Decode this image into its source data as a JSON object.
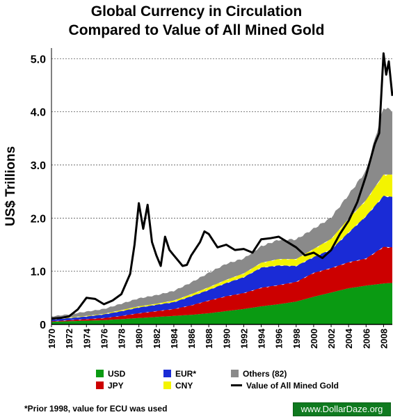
{
  "chart_data": {
    "type": "area",
    "title": "Global Currency in Circulation",
    "subtitle": "Compared to Value of All Mined Gold",
    "ylabel": "US$ Trillions",
    "xlabel": "",
    "xlim": [
      1970,
      2009
    ],
    "ylim": [
      0,
      5.2
    ],
    "x_ticks": [
      "1970",
      "1972",
      "1974",
      "1976",
      "1978",
      "1980",
      "1982",
      "1984",
      "1986",
      "1988",
      "1990",
      "1992",
      "1994",
      "1996",
      "1998",
      "2000",
      "2002",
      "2004",
      "2006",
      "2008"
    ],
    "y_ticks": [
      "0",
      "1.0",
      "2.0",
      "3.0",
      "4.0",
      "5.0"
    ],
    "grid": "horizontal dashed",
    "stacked": true,
    "x": [
      1970,
      1972,
      1974,
      1976,
      1978,
      1980,
      1982,
      1984,
      1986,
      1988,
      1990,
      1992,
      1994,
      1996,
      1998,
      2000,
      2002,
      2004,
      2006,
      2008,
      2009
    ],
    "series": [
      {
        "name": "USD",
        "color": "#0a9a12",
        "values": [
          0.05,
          0.06,
          0.07,
          0.08,
          0.1,
          0.12,
          0.14,
          0.16,
          0.18,
          0.21,
          0.25,
          0.29,
          0.34,
          0.38,
          0.43,
          0.52,
          0.6,
          0.68,
          0.73,
          0.77,
          0.78
        ]
      },
      {
        "name": "JPY",
        "color": "#cc0000",
        "values": [
          0.01,
          0.02,
          0.03,
          0.04,
          0.06,
          0.09,
          0.11,
          0.13,
          0.18,
          0.24,
          0.28,
          0.3,
          0.35,
          0.36,
          0.37,
          0.45,
          0.46,
          0.49,
          0.51,
          0.69,
          0.67
        ]
      },
      {
        "name": "EUR*",
        "color": "#1a2bd6",
        "values": [
          0.03,
          0.04,
          0.05,
          0.07,
          0.09,
          0.11,
          0.12,
          0.13,
          0.17,
          0.2,
          0.25,
          0.3,
          0.38,
          0.37,
          0.3,
          0.3,
          0.35,
          0.56,
          0.8,
          0.96,
          0.95
        ]
      },
      {
        "name": "CNY",
        "color": "#f4f400",
        "values": [
          0.01,
          0.01,
          0.01,
          0.01,
          0.02,
          0.02,
          0.02,
          0.03,
          0.04,
          0.05,
          0.06,
          0.07,
          0.09,
          0.12,
          0.13,
          0.15,
          0.2,
          0.26,
          0.3,
          0.4,
          0.42
        ]
      },
      {
        "name": "Others (82)",
        "color": "#8a8a8a",
        "values": [
          0.05,
          0.06,
          0.08,
          0.09,
          0.12,
          0.15,
          0.16,
          0.18,
          0.22,
          0.27,
          0.3,
          0.28,
          0.31,
          0.36,
          0.37,
          0.38,
          0.4,
          0.45,
          0.55,
          1.26,
          1.2
        ]
      }
    ],
    "gold": {
      "name": "Value of All Mined Gold",
      "x": [
        1970,
        1971,
        1972,
        1973,
        1974,
        1975,
        1976,
        1977,
        1978,
        1979,
        1979.5,
        1980,
        1980.5,
        1981,
        1981.5,
        1982,
        1982.5,
        1983,
        1983.5,
        1984,
        1985,
        1985.5,
        1986,
        1987,
        1987.5,
        1988,
        1989,
        1990,
        1991,
        1992,
        1993,
        1994,
        1995,
        1996,
        1997,
        1998,
        1999,
        2000,
        2001,
        2002,
        2003,
        2004,
        2005,
        2006,
        2007,
        2007.5,
        2008,
        2008.3,
        2008.6,
        2009
      ],
      "values": [
        0.11,
        0.12,
        0.15,
        0.28,
        0.5,
        0.48,
        0.38,
        0.45,
        0.57,
        0.95,
        1.5,
        2.28,
        1.8,
        2.25,
        1.55,
        1.3,
        1.1,
        1.65,
        1.4,
        1.3,
        1.1,
        1.12,
        1.3,
        1.55,
        1.75,
        1.7,
        1.45,
        1.5,
        1.4,
        1.42,
        1.35,
        1.6,
        1.62,
        1.65,
        1.55,
        1.45,
        1.3,
        1.35,
        1.25,
        1.4,
        1.7,
        1.95,
        2.3,
        2.8,
        3.4,
        3.6,
        5.1,
        4.7,
        4.95,
        4.3
      ],
      "color": "#000000"
    },
    "legend": "bottom",
    "annotations": [
      "*Prior 1998, value for ECU was used"
    ],
    "credit": "www.DollarDaze.org"
  },
  "legend_items": [
    {
      "label": "USD",
      "color": "#0a9a12"
    },
    {
      "label": "JPY",
      "color": "#cc0000"
    },
    {
      "label": "EUR*",
      "color": "#1a2bd6"
    },
    {
      "label": "CNY",
      "color": "#f4f400"
    },
    {
      "label": "Others (82)",
      "color": "#8a8a8a"
    },
    {
      "label": "Value of All Mined Gold",
      "color": "#000000"
    }
  ]
}
